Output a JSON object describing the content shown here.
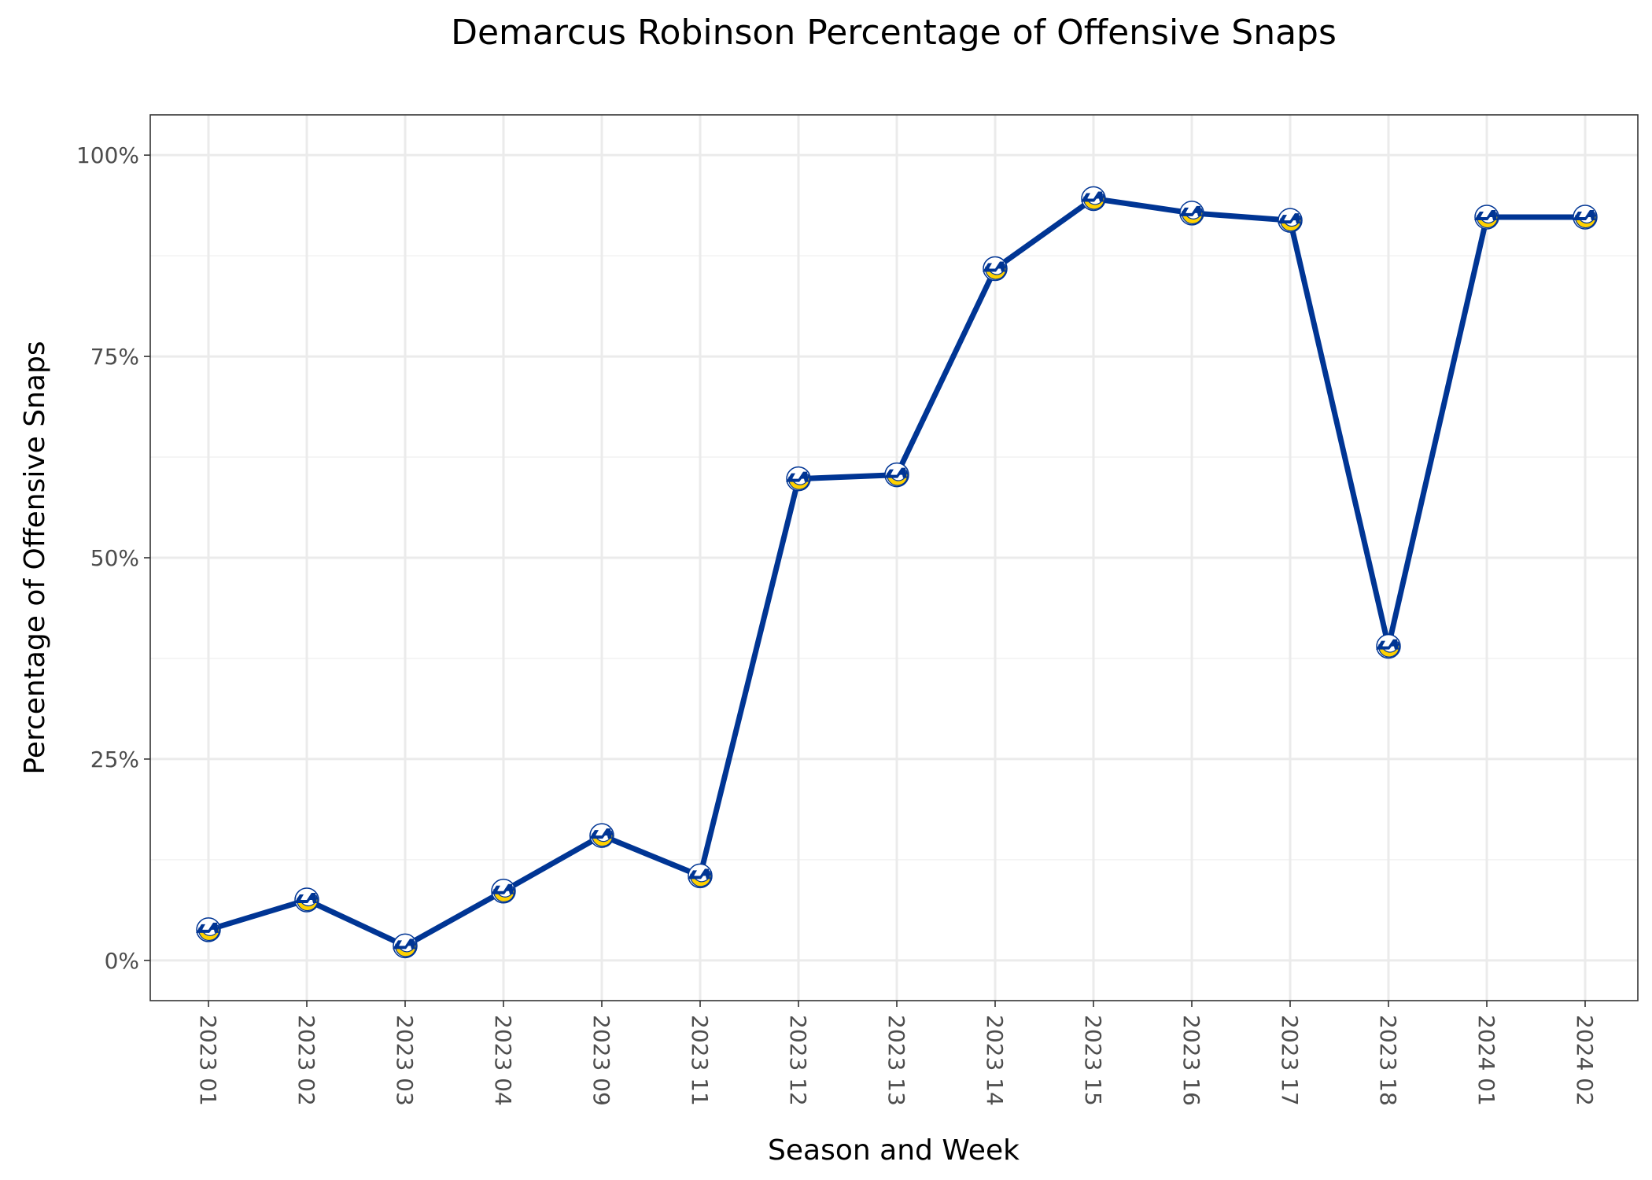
{
  "chart_data": {
    "type": "line",
    "title": "Demarcus Robinson Percentage of Offensive Snaps",
    "xlabel": "Season and Week",
    "ylabel": "Percentage of Offensive Snaps",
    "categories": [
      "2023 01",
      "2023 02",
      "2023 03",
      "2023 04",
      "2023 09",
      "2023 11",
      "2023 12",
      "2023 13",
      "2023 14",
      "2023 15",
      "2023 16",
      "2023 17",
      "2023 18",
      "2024 01",
      "2024 02"
    ],
    "series": [
      {
        "values": [
          3.8,
          7.5,
          1.8,
          8.6,
          15.5,
          10.5,
          59.8,
          60.3,
          85.9,
          94.6,
          92.8,
          91.9,
          39.0,
          92.3,
          92.3
        ]
      }
    ],
    "ylim": [
      -5,
      105
    ],
    "yticks": [
      0,
      25,
      50,
      75,
      100
    ],
    "ytick_labels": [
      "0%",
      "25%",
      "50%",
      "75%",
      "100%"
    ],
    "grid": true,
    "legend": "none",
    "marker_icon": "team-helmet-logo-icon",
    "colors": {
      "line": "#003594",
      "logo_blue": "#003594",
      "logo_gold": "#FFD100"
    }
  }
}
